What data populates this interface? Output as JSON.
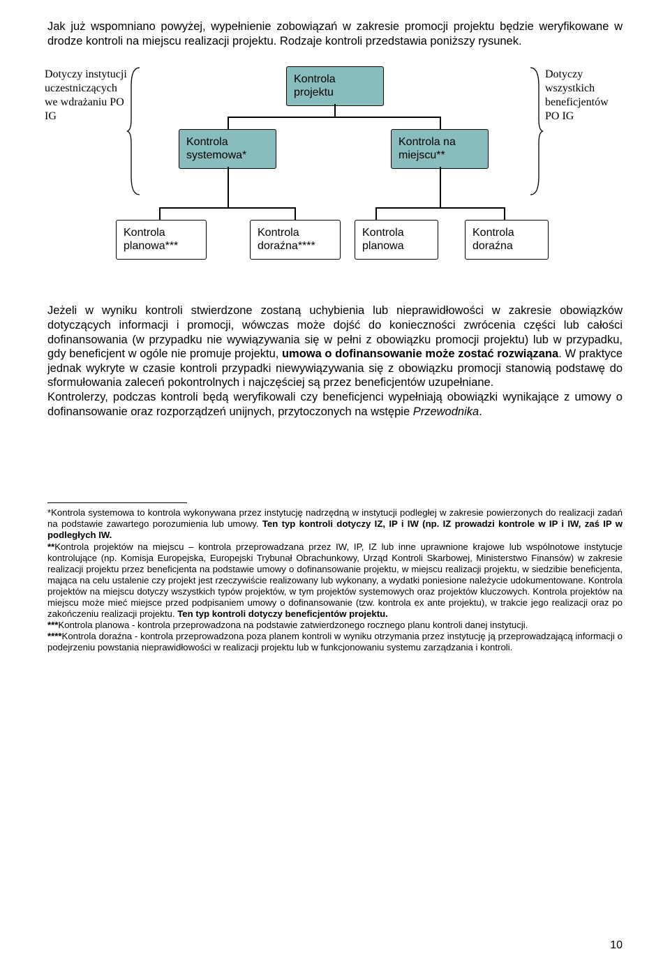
{
  "intro": "Jak już wspomniano powyżej, wypełnienie zobowiązań w zakresie promocji projektu będzie weryfikowane w drodze kontroli na miejscu realizacji projektu. Rodzaje kontroli  przedstawia poniższy rysunek.",
  "diagram": {
    "left_label": "Dotyczy instytucji uczestniczących we wdrażaniu PO IG",
    "right_label": "Dotyczy wszystkich beneficjentów PO IG",
    "n_top": "Kontrola projektu",
    "n_sys": "Kontrola systemowa*",
    "n_miej": "Kontrola na miejscu**",
    "n_plan3": "Kontrola planowa***",
    "n_dor4": "Kontrola doraźna****",
    "n_plan": "Kontrola planowa",
    "n_dor": "Kontrola doraźna",
    "teal": "#89bcbc",
    "white": "#ffffff"
  },
  "body_html": "Jeżeli w wyniku kontroli stwierdzone zostaną uchybienia lub nieprawidłowości w zakresie obowiązków dotyczących informacji i promocji, wówczas może dojść do konieczności zwrócenia części lub całości dofinansowania (w przypadku nie wywiązywania się w pełni z obowiązku promocji projektu) lub w przypadku, gdy beneficjent w ogóle nie promuje projektu, <span class=\"bold\">umowa o dofinansowanie może zostać rozwiązana</span>. W praktyce jednak wykryte w czasie kontroli przypadki niewywiązywania się z obowiązku promocji stanowią podstawę do sformułowania zaleceń pokontrolnych i najczęściej są przez beneficjentów uzupełniane.<br>Kontrolerzy, podczas kontroli będą weryfikowali czy beneficjenci wypełniają obowiązki wynikające z umowy o dofinansowanie oraz rozporządzeń unijnych, przytoczonych na wstępie <span class=\"italic\">Przewodnika</span>.",
  "footnotes_html": "*Kontrola systemowa to kontrola wykonywana przez instytucję nadrzędną w instytucji podległej w zakresie powierzonych do realizacji zadań na podstawie zawartego porozumienia lub umowy. <span class=\"b\">Ten typ kontroli dotyczy IZ, IP i IW (np. IZ prowadzi kontrole w IP i IW, zaś IP w podległych IW.</span><br><span class=\"b\">**</span>Kontrola projektów na miejscu – kontrola przeprowadzana przez IW, IP, IZ lub inne uprawnione krajowe lub wspólnotowe instytucje kontrolujące (np. Komisja Europejska, Europejski Trybunał Obrachunkowy, Urząd Kontroli Skarbowej, Ministerstwo Finansów) w zakresie realizacji projektu przez beneficjenta na podstawie umowy o dofinansowanie projektu, w miejscu realizacji projektu, w siedzibie beneficjenta, mająca na celu ustalenie czy projekt jest rzeczywiście realizowany lub wykonany, a wydatki poniesione należycie udokumentowane. Kontrola projektów na miejscu dotyczy wszystkich typów projektów, w tym projektów systemowych oraz projektów kluczowych. Kontrola projektów na miejscu może mieć miejsce przed podpisaniem umowy o dofinansowanie (tzw. kontrola ex ante projektu), w trakcie jego realizacji oraz po zakończeniu realizacji projektu. <span class=\"b\">Ten typ kontroli dotyczy beneficjentów projektu.</span><br><span class=\"b\">***</span>Kontrola planowa - kontrola przeprowadzona na podstawie zatwierdzonego rocznego planu kontroli danej instytucji.<br><span class=\"b\">****</span>Kontrola doraźna - kontrola przeprowadzona poza planem kontroli w wyniku otrzymania przez instytucję ją przeprowadzającą informacji o podejrzeniu powstania nieprawidłowości w realizacji projektu lub w funkcjonowaniu systemu zarządzania i kontroli.",
  "page_number": "10"
}
